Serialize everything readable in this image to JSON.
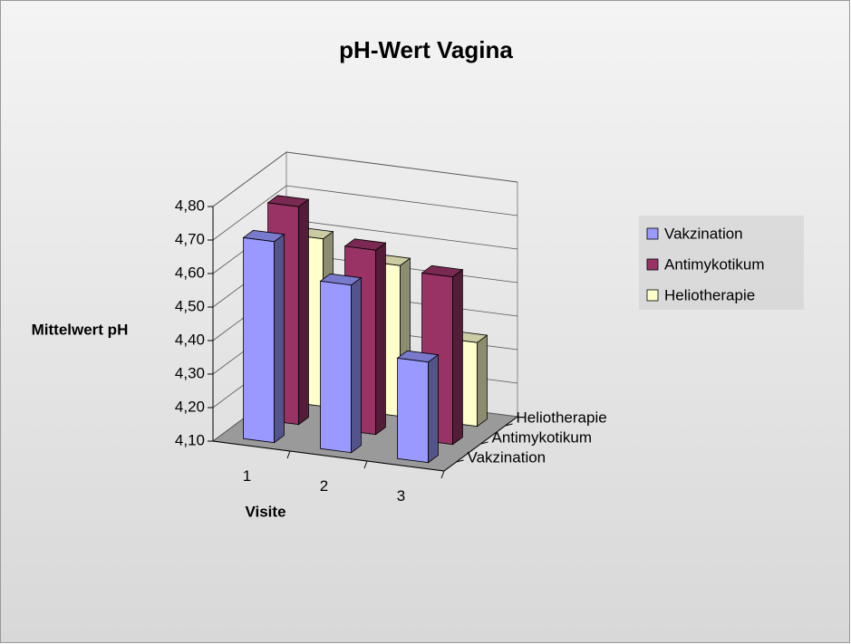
{
  "chart_data": {
    "type": "bar3d",
    "title": "pH-Wert Vagina",
    "y_label": "Mittelwert pH",
    "x_label": "Visite",
    "categories": [
      "1",
      "2",
      "3"
    ],
    "series": [
      {
        "name": "Vakzination",
        "color": "#9999ff",
        "values": [
          4.7,
          4.6,
          4.4
        ]
      },
      {
        "name": "Antimykotikum",
        "color": "#993366",
        "values": [
          4.75,
          4.65,
          4.6
        ]
      },
      {
        "name": "Heliotherapie",
        "color": "#ffffcc",
        "values": [
          4.6,
          4.55,
          4.35
        ]
      }
    ],
    "ylim": [
      4.1,
      4.8
    ],
    "yticks": [
      {
        "value": 4.1,
        "label": "4,10"
      },
      {
        "value": 4.2,
        "label": "4,20"
      },
      {
        "value": 4.3,
        "label": "4,30"
      },
      {
        "value": 4.4,
        "label": "4,40"
      },
      {
        "value": 4.5,
        "label": "4,50"
      },
      {
        "value": 4.6,
        "label": "4,60"
      },
      {
        "value": 4.7,
        "label": "4,70"
      },
      {
        "value": 4.8,
        "label": "4,80"
      }
    ],
    "grid": true,
    "legend": "right"
  }
}
